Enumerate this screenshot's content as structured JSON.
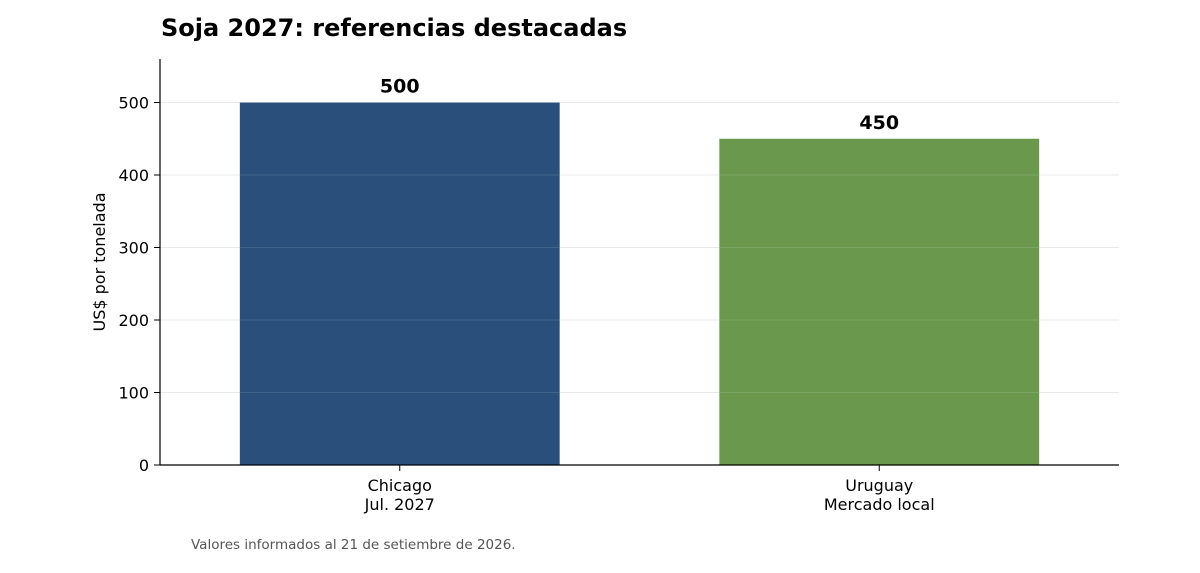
{
  "chart_data": {
    "type": "bar",
    "title": "Soja 2027: referencias destacadas",
    "ylabel": "US$ por tonelada",
    "xlabel": "",
    "categories": [
      [
        "Chicago",
        "Jul. 2027"
      ],
      [
        "Uruguay",
        "Mercado local"
      ]
    ],
    "values": [
      500,
      450
    ],
    "value_labels": [
      "500",
      "450"
    ],
    "colors": [
      "#294f7a",
      "#6a994e"
    ],
    "ylim": [
      0,
      560
    ],
    "yticks": [
      0,
      100,
      200,
      300,
      400,
      500
    ],
    "grid": true,
    "legend": "none"
  },
  "footnote": "Valores informados al 21 de setiembre de 2026."
}
